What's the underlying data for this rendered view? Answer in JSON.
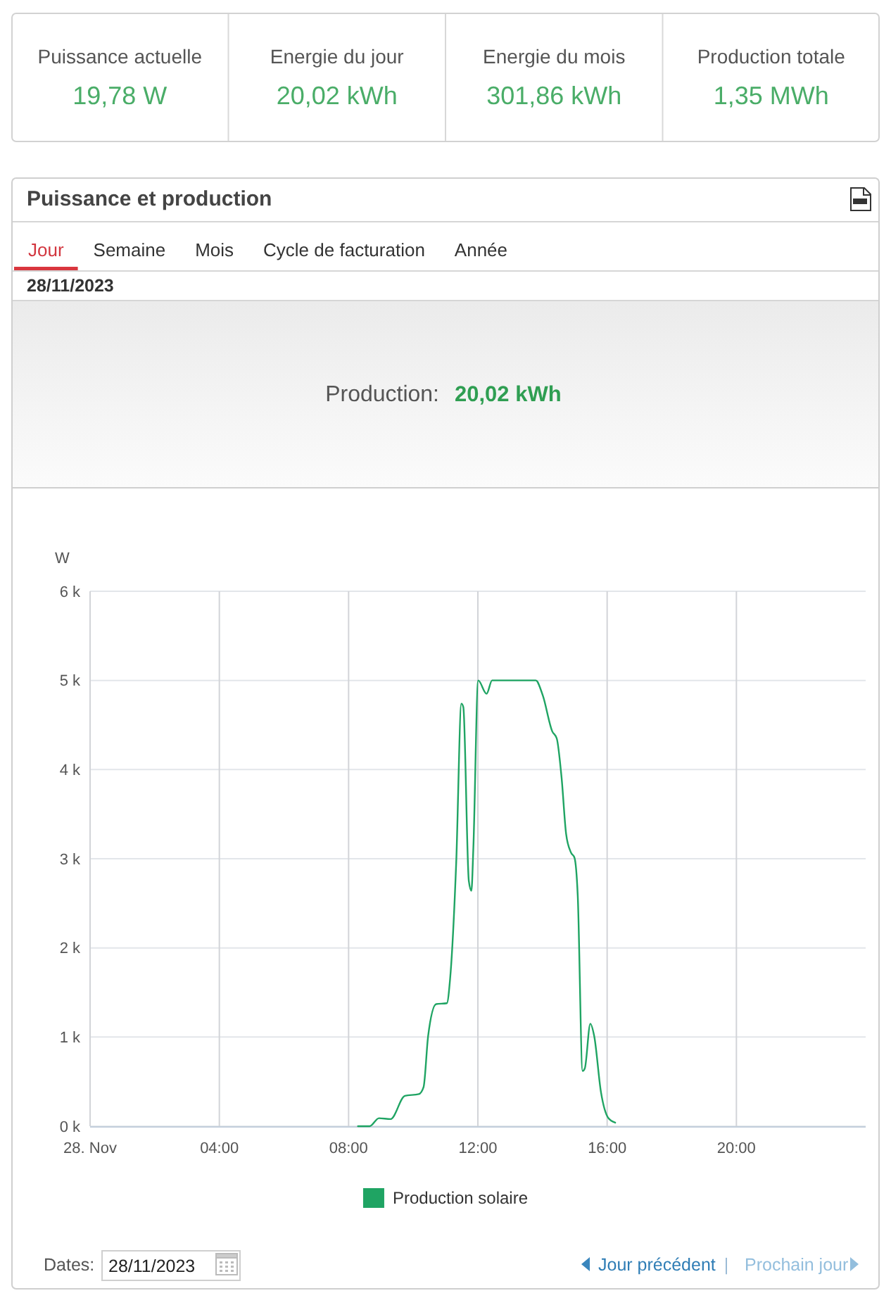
{
  "chart_data": [
    {
      "type": "other",
      "annotations": [
        "Puissance actuelle",
        "19,78 W",
        "Energie du jour",
        "20,02 kWh",
        "Energie du mois",
        "301,86 kWh",
        "Production totale",
        "1,35 MWh"
      ]
    },
    {
      "type": "line",
      "title": "Puissance et production",
      "subtitle": "28/11/2023",
      "ylabel": "W",
      "x": [
        8.29,
        8.65,
        8.94,
        9.3,
        9.74,
        10.17,
        10.32,
        10.46,
        10.71,
        11.04,
        11.14,
        11.33,
        11.49,
        11.55,
        11.72,
        11.8,
        11.86,
        12.01,
        12.27,
        12.44,
        13.79,
        14.01,
        14.3,
        14.44,
        14.59,
        14.73,
        14.88,
        14.99,
        15.09,
        15.24,
        15.31,
        15.48,
        15.6,
        15.81,
        16.04,
        16.25
      ],
      "series": [
        {
          "name": "Production solaire",
          "color": "#1fa463",
          "values": [
            0,
            0,
            90,
            80,
            340,
            360,
            440,
            1010,
            1370,
            1380,
            1650,
            2960,
            4740,
            4700,
            2750,
            2640,
            3120,
            5000,
            4850,
            5000,
            5000,
            4830,
            4430,
            4350,
            3910,
            3280,
            3070,
            3010,
            2590,
            620,
            650,
            1150,
            1010,
            380,
            90,
            40
          ]
        }
      ],
      "xlim": [
        0,
        24
      ],
      "xticks": [
        {
          "value": 0,
          "label": "28. Nov"
        },
        {
          "value": 4,
          "label": "04:00"
        },
        {
          "value": 8,
          "label": "08:00"
        },
        {
          "value": 12,
          "label": "12:00"
        },
        {
          "value": 16,
          "label": "16:00"
        },
        {
          "value": 20,
          "label": "20:00"
        }
      ],
      "ylim": [
        0,
        6000
      ],
      "yticks": [
        {
          "value": 0,
          "label": "0 k"
        },
        {
          "value": 1000,
          "label": "1 k"
        },
        {
          "value": 2000,
          "label": "2 k"
        },
        {
          "value": 3000,
          "label": "3 k"
        },
        {
          "value": 4000,
          "label": "4 k"
        },
        {
          "value": 5000,
          "label": "5 k"
        },
        {
          "value": 6000,
          "label": "6 k"
        }
      ],
      "grid": true,
      "legend": "bottom",
      "annotations": [
        "Jour",
        "Semaine",
        "Mois",
        "Cycle de facturation",
        "Année",
        "Production:",
        "20,02 kWh",
        "Dates:",
        "28/11/2023",
        "Jour précédent",
        "|",
        "Prochain jour"
      ]
    }
  ]
}
